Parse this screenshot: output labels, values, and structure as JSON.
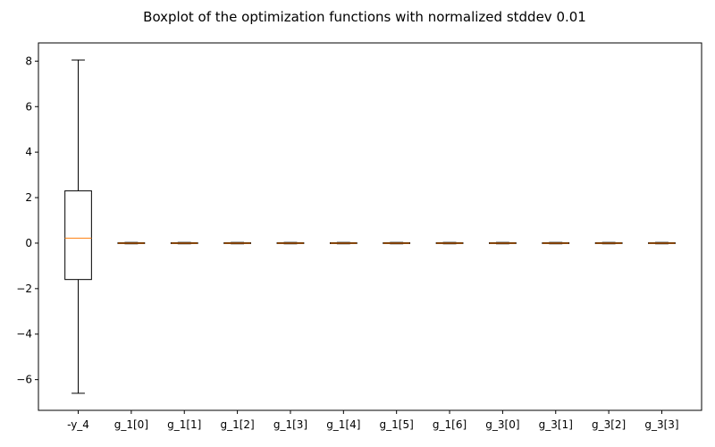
{
  "chart_data": {
    "type": "boxplot",
    "title": "Boxplot of the optimization functions with normalized stddev 0.01",
    "xlabel": "",
    "ylabel": "",
    "ylim": [
      -7.35,
      8.8
    ],
    "yticks": [
      -6,
      -4,
      -2,
      0,
      2,
      4,
      6,
      8
    ],
    "ytick_labels": [
      "−6",
      "−4",
      "−2",
      "0",
      "2",
      "4",
      "6",
      "8"
    ],
    "grid": false,
    "categories": [
      "-y_4",
      "g_1[0]",
      "g_1[1]",
      "g_1[2]",
      "g_1[3]",
      "g_1[4]",
      "g_1[5]",
      "g_1[6]",
      "g_3[0]",
      "g_3[1]",
      "g_3[2]",
      "g_3[3]"
    ],
    "boxes": [
      {
        "whislo": -6.6,
        "q1": -1.6,
        "med": 0.22,
        "q3": 2.3,
        "whishi": 8.05
      },
      {
        "whislo": -0.03,
        "q1": -0.02,
        "med": 0.0,
        "q3": 0.02,
        "whishi": 0.03
      },
      {
        "whislo": -0.03,
        "q1": -0.02,
        "med": 0.0,
        "q3": 0.02,
        "whishi": 0.03
      },
      {
        "whislo": -0.03,
        "q1": -0.02,
        "med": 0.0,
        "q3": 0.02,
        "whishi": 0.03
      },
      {
        "whislo": -0.03,
        "q1": -0.02,
        "med": 0.0,
        "q3": 0.02,
        "whishi": 0.03
      },
      {
        "whislo": -0.03,
        "q1": -0.02,
        "med": 0.0,
        "q3": 0.02,
        "whishi": 0.03
      },
      {
        "whislo": -0.03,
        "q1": -0.02,
        "med": 0.0,
        "q3": 0.02,
        "whishi": 0.03
      },
      {
        "whislo": -0.03,
        "q1": -0.02,
        "med": 0.0,
        "q3": 0.02,
        "whishi": 0.03
      },
      {
        "whislo": -0.03,
        "q1": -0.02,
        "med": 0.0,
        "q3": 0.02,
        "whishi": 0.03
      },
      {
        "whislo": -0.03,
        "q1": -0.02,
        "med": 0.0,
        "q3": 0.02,
        "whishi": 0.03
      },
      {
        "whislo": -0.03,
        "q1": -0.02,
        "med": 0.0,
        "q3": 0.02,
        "whishi": 0.03
      },
      {
        "whislo": -0.03,
        "q1": -0.02,
        "med": 0.0,
        "q3": 0.02,
        "whishi": 0.03
      }
    ],
    "colors": {
      "box": "#000000",
      "median": "#ff7f0e"
    }
  }
}
